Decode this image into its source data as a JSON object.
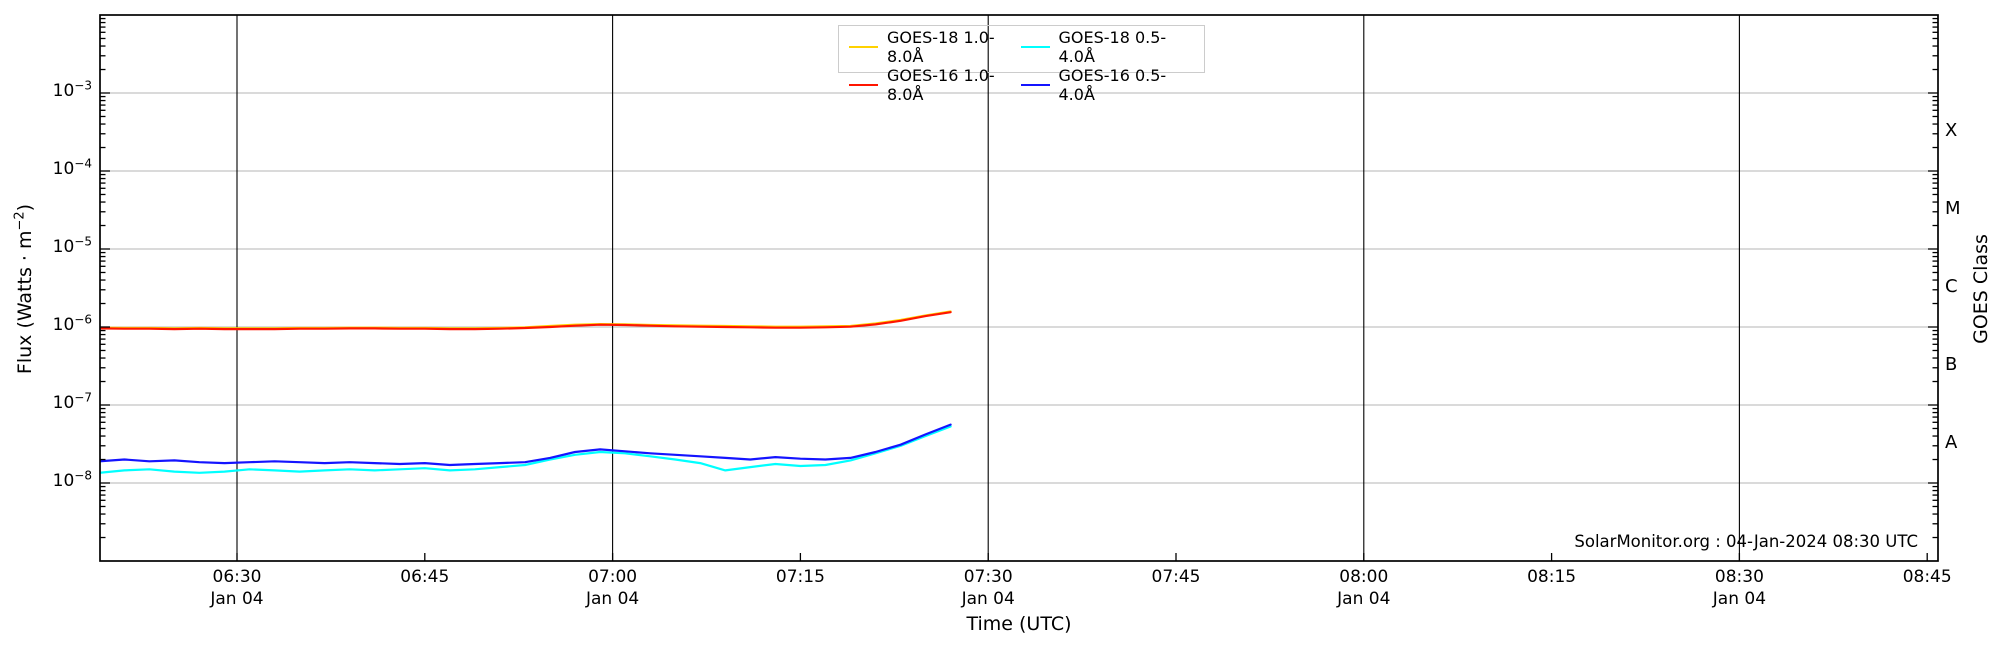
{
  "chart_data": {
    "type": "line",
    "title": "",
    "xlabel": "Time (UTC)",
    "ylabel": {
      "prefix": "Flux (Watts · m",
      "sup": "−2",
      "suffix": ")"
    },
    "ylabel_right": "GOES Class",
    "watermark": "SolarMonitor.org : 04-Jan-2024 08:30 UTC",
    "x_range": [
      "06:19",
      "08:46"
    ],
    "y_range_exponents": [
      -9,
      -2
    ],
    "grid": {
      "vertical_times": [
        "06:30",
        "07:00",
        "07:30",
        "08:00",
        "08:30"
      ],
      "horizontal_exponents": [
        -3,
        -4,
        -5,
        -6,
        -7,
        -8
      ],
      "vertical_color": "#000000",
      "horizontal_color": "#b4b4b4"
    },
    "x_ticks": [
      {
        "label": "06:30",
        "date": "Jan 04"
      },
      {
        "label": "06:45",
        "date": ""
      },
      {
        "label": "07:00",
        "date": "Jan 04"
      },
      {
        "label": "07:15",
        "date": ""
      },
      {
        "label": "07:30",
        "date": "Jan 04"
      },
      {
        "label": "07:45",
        "date": ""
      },
      {
        "label": "08:00",
        "date": "Jan 04"
      },
      {
        "label": "08:15",
        "date": ""
      },
      {
        "label": "08:30",
        "date": "Jan 04"
      },
      {
        "label": "08:45",
        "date": ""
      }
    ],
    "y_ticks": [
      {
        "base": "10",
        "exp": "−3",
        "e": -3
      },
      {
        "base": "10",
        "exp": "−4",
        "e": -4
      },
      {
        "base": "10",
        "exp": "−5",
        "e": -5
      },
      {
        "base": "10",
        "exp": "−6",
        "e": -6
      },
      {
        "base": "10",
        "exp": "−7",
        "e": -7
      },
      {
        "base": "10",
        "exp": "−8",
        "e": -8
      }
    ],
    "goes_classes": [
      {
        "label": "X",
        "center_exponent": -3.5
      },
      {
        "label": "M",
        "center_exponent": -4.5
      },
      {
        "label": "C",
        "center_exponent": -5.5
      },
      {
        "label": "B",
        "center_exponent": -6.5
      },
      {
        "label": "A",
        "center_exponent": -7.5
      }
    ],
    "legend": {
      "position": "upper center",
      "items": [
        {
          "label": "GOES-18 1.0-8.0Å",
          "color": "#ffd200"
        },
        {
          "label": "GOES-16 1.0-8.0Å",
          "color": "#ff1500"
        },
        {
          "label": "GOES-18 0.5-4.0Å",
          "color": "#00ffff"
        },
        {
          "label": "GOES-16 0.5-4.0Å",
          "color": "#1414ff"
        }
      ]
    },
    "x_times": [
      "06:19",
      "06:21",
      "06:23",
      "06:25",
      "06:27",
      "06:29",
      "06:31",
      "06:33",
      "06:35",
      "06:37",
      "06:39",
      "06:41",
      "06:43",
      "06:45",
      "06:47",
      "06:49",
      "06:51",
      "06:53",
      "06:55",
      "06:57",
      "06:59",
      "07:01",
      "07:03",
      "07:05",
      "07:07",
      "07:09",
      "07:11",
      "07:13",
      "07:15",
      "07:17",
      "07:19",
      "07:21",
      "07:23",
      "07:25",
      "07:27"
    ],
    "series": [
      {
        "name": "GOES-18 1.0-8.0Å",
        "color": "#ffd200",
        "values": [
          9.8e-07,
          9.7e-07,
          9.7e-07,
          9.6e-07,
          9.7e-07,
          9.6e-07,
          9.6e-07,
          9.6e-07,
          9.7e-07,
          9.7e-07,
          9.8e-07,
          9.8e-07,
          9.7e-07,
          9.7e-07,
          9.6e-07,
          9.6e-07,
          9.7e-07,
          9.9e-07,
          1.03e-06,
          1.07e-06,
          1.09e-06,
          1.08e-06,
          1.06e-06,
          1.05e-06,
          1.04e-06,
          1.03e-06,
          1.02e-06,
          1.01e-06,
          1.01e-06,
          1.02e-06,
          1.03e-06,
          1.11e-06,
          1.23e-06,
          1.41e-06,
          1.58e-06
        ]
      },
      {
        "name": "GOES-18 0.5-4.0Å",
        "color": "#00ffff",
        "values": [
          1.35e-08,
          1.45e-08,
          1.5e-08,
          1.4e-08,
          1.35e-08,
          1.4e-08,
          1.5e-08,
          1.45e-08,
          1.4e-08,
          1.45e-08,
          1.5e-08,
          1.45e-08,
          1.5e-08,
          1.55e-08,
          1.45e-08,
          1.5e-08,
          1.6e-08,
          1.7e-08,
          2e-08,
          2.3e-08,
          2.5e-08,
          2.4e-08,
          2.2e-08,
          2e-08,
          1.8e-08,
          1.45e-08,
          1.6e-08,
          1.75e-08,
          1.65e-08,
          1.7e-08,
          1.95e-08,
          2.4e-08,
          3e-08,
          4e-08,
          5.3e-08
        ]
      },
      {
        "name": "GOES-16 1.0-8.0Å",
        "color": "#ff1500",
        "values": [
          9.6e-07,
          9.5e-07,
          9.5e-07,
          9.4e-07,
          9.5e-07,
          9.4e-07,
          9.4e-07,
          9.4e-07,
          9.5e-07,
          9.5e-07,
          9.6e-07,
          9.6e-07,
          9.5e-07,
          9.5e-07,
          9.4e-07,
          9.4e-07,
          9.5e-07,
          9.7e-07,
          1e-06,
          1.04e-06,
          1.07e-06,
          1.06e-06,
          1.04e-06,
          1.02e-06,
          1.01e-06,
          1e-06,
          9.9e-07,
          9.8e-07,
          9.8e-07,
          9.9e-07,
          1.01e-06,
          1.08e-06,
          1.2e-06,
          1.38e-06,
          1.55e-06
        ]
      },
      {
        "name": "GOES-16 0.5-4.0Å",
        "color": "#1414ff",
        "values": [
          1.9e-08,
          2e-08,
          1.9e-08,
          1.95e-08,
          1.85e-08,
          1.8e-08,
          1.85e-08,
          1.9e-08,
          1.85e-08,
          1.8e-08,
          1.85e-08,
          1.8e-08,
          1.75e-08,
          1.8e-08,
          1.7e-08,
          1.75e-08,
          1.8e-08,
          1.85e-08,
          2.1e-08,
          2.5e-08,
          2.7e-08,
          2.55e-08,
          2.4e-08,
          2.3e-08,
          2.2e-08,
          2.1e-08,
          2e-08,
          2.15e-08,
          2.05e-08,
          2e-08,
          2.1e-08,
          2.5e-08,
          3.1e-08,
          4.2e-08,
          5.6e-08
        ]
      }
    ]
  }
}
